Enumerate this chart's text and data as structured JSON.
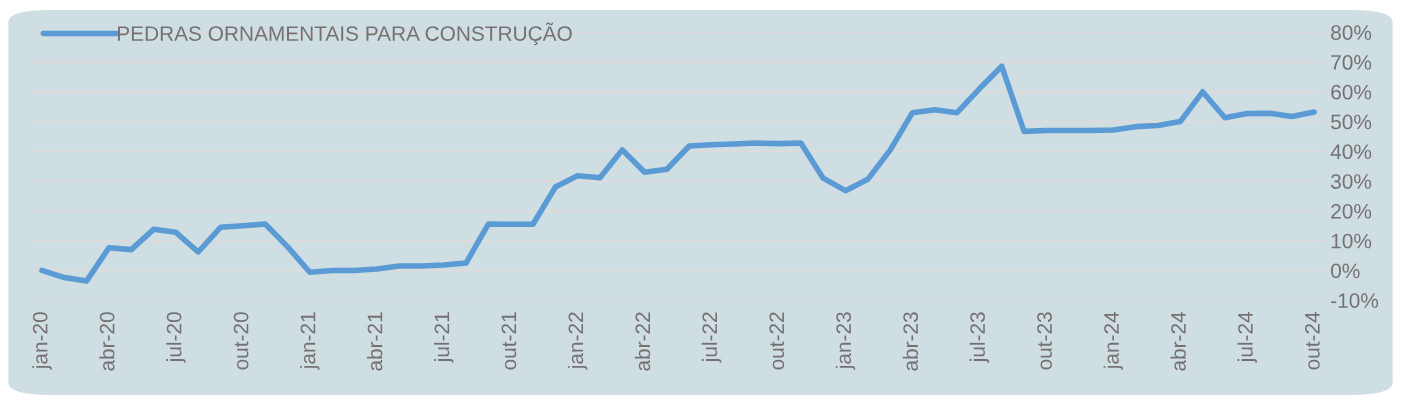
{
  "chart_data": {
    "type": "line",
    "categories": [
      "jan-20",
      null,
      null,
      "abr-20",
      null,
      null,
      "jul-20",
      null,
      null,
      "out-20",
      null,
      null,
      "jan-21",
      null,
      null,
      "abr-21",
      null,
      null,
      "jul-21",
      null,
      null,
      "out-21",
      null,
      null,
      "jan-22",
      null,
      null,
      "abr-22",
      null,
      null,
      "jul-22",
      null,
      null,
      "out-22",
      null,
      null,
      "jan-23",
      null,
      null,
      "abr-23",
      null,
      null,
      "jul-23",
      null,
      null,
      "out-23",
      null,
      null,
      "jan-24",
      null,
      null,
      "abr-24",
      null,
      null,
      "jul-24",
      null,
      null,
      "out-24"
    ],
    "series": [
      {
        "name": "PEDRAS ORNAMENTAIS PARA CONSTRUÇÃO",
        "color": "#5b9bd5",
        "values": [
          0,
          -2.4,
          -3.5,
          7.6,
          7,
          13.8,
          12.8,
          6.2,
          14.5,
          15,
          15.6,
          8,
          -0.6,
          0,
          0,
          0.5,
          1.5,
          1.5,
          1.8,
          2.5,
          15.6,
          15.5,
          15.5,
          28,
          31.8,
          31.1,
          40.5,
          33,
          34,
          41.8,
          42.2,
          42.5,
          42.8,
          42.6,
          42.8,
          31,
          26.8,
          30.6,
          40.4,
          53,
          54,
          53,
          61,
          68.6,
          46.7,
          47,
          47,
          47,
          47.2,
          48.3,
          48.7,
          50,
          60,
          51.3,
          52.7,
          52.8,
          51.7,
          53.2
        ]
      }
    ],
    "ylim": [
      -10,
      80
    ],
    "yticks": [
      {
        "value": -10,
        "label": "-10%"
      },
      {
        "value": 0,
        "label": "0%"
      },
      {
        "value": 10,
        "label": "10%"
      },
      {
        "value": 20,
        "label": "20%"
      },
      {
        "value": 30,
        "label": "30%"
      },
      {
        "value": 40,
        "label": "40%"
      },
      {
        "value": 50,
        "label": "50%"
      },
      {
        "value": 60,
        "label": "60%"
      },
      {
        "value": 70,
        "label": "70%"
      },
      {
        "value": 80,
        "label": "80%"
      }
    ],
    "grid": "y",
    "legend": "top left",
    "marker": "none",
    "line_style": "solid"
  }
}
